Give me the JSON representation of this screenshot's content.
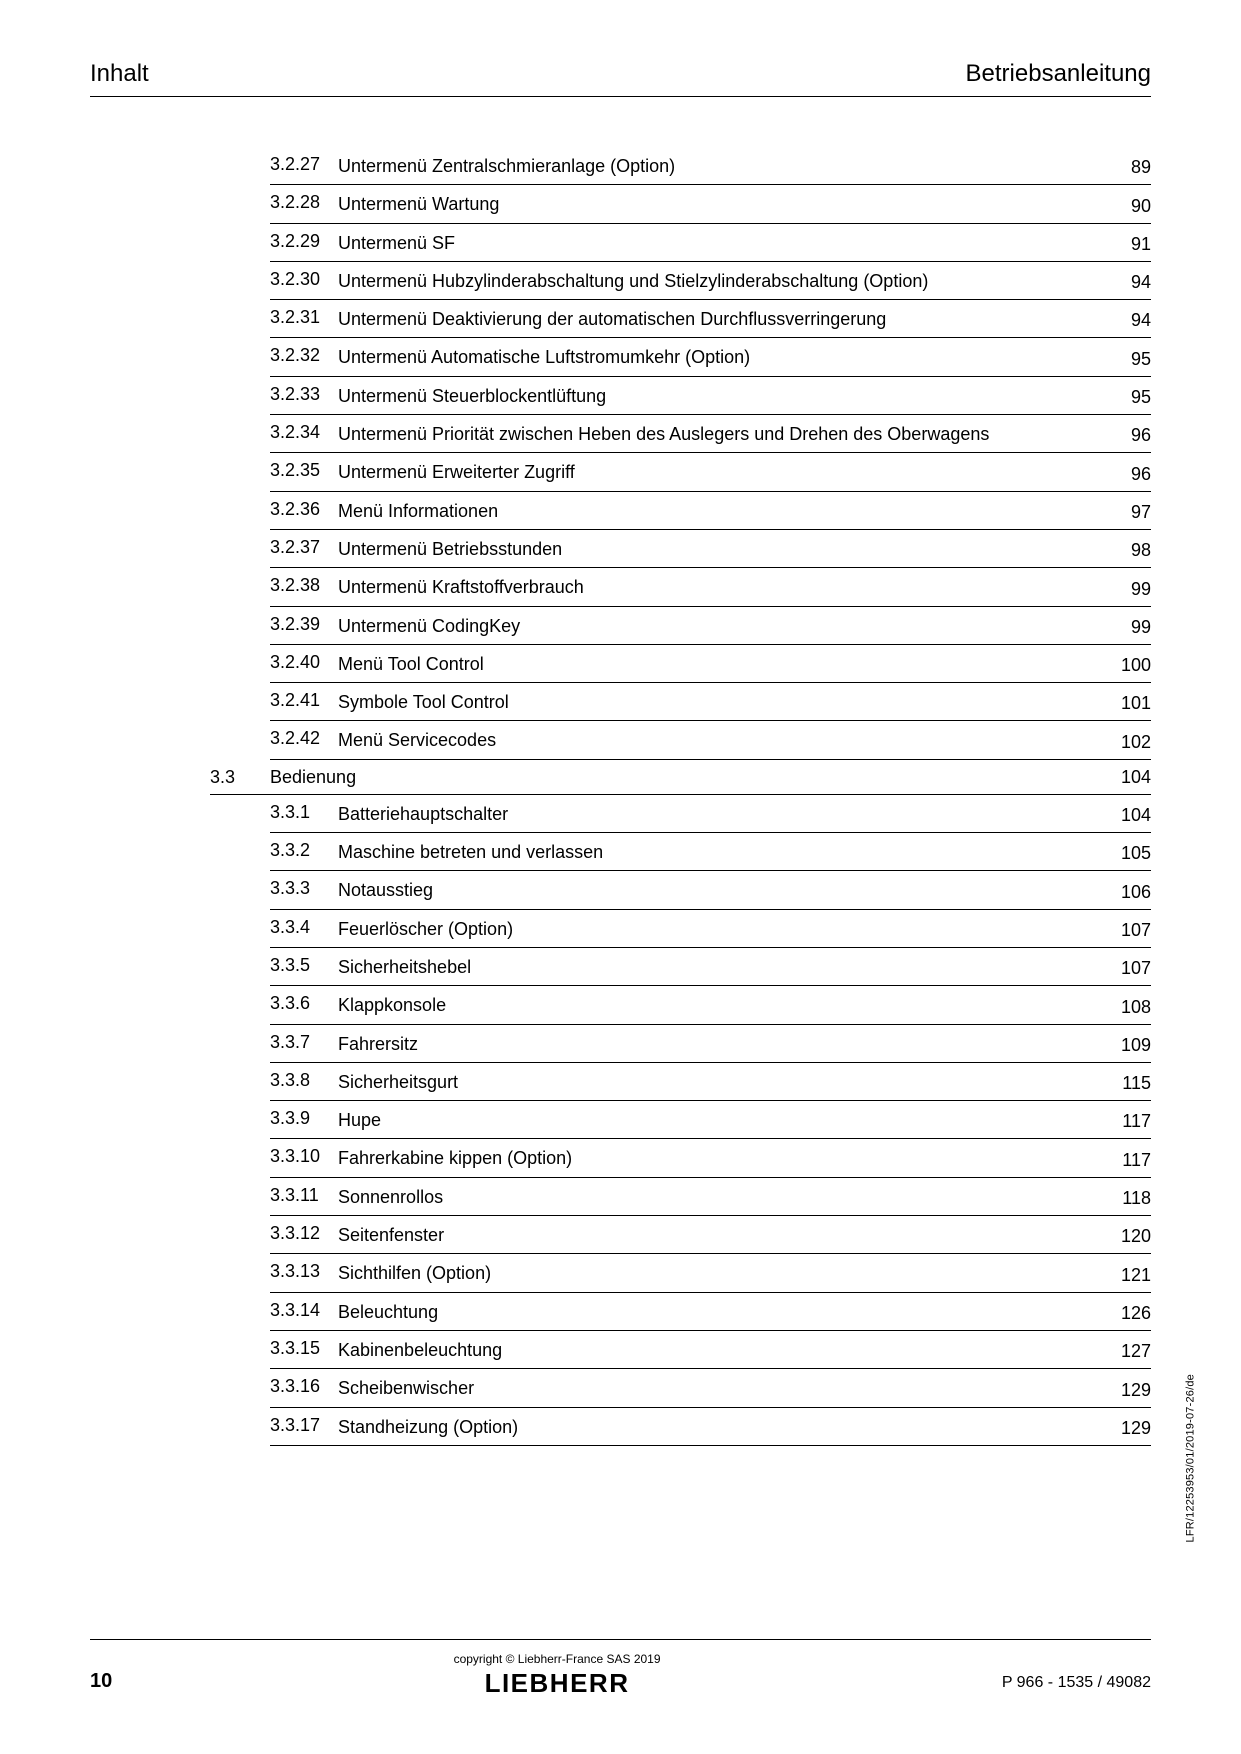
{
  "header": {
    "left": "Inhalt",
    "right": "Betriebsanleitung"
  },
  "toc_upper": [
    {
      "num": "3.2.27",
      "title": "Untermenü Zentralschmieranlage (Option)",
      "page": "89"
    },
    {
      "num": "3.2.28",
      "title": "Untermenü Wartung",
      "page": "90"
    },
    {
      "num": "3.2.29",
      "title": "Untermenü SF",
      "page": "91"
    },
    {
      "num": "3.2.30",
      "title": "Untermenü Hubzylinderabschaltung und Stielzylinderabschaltung (Option)",
      "page": "94"
    },
    {
      "num": "3.2.31",
      "title": "Untermenü Deaktivierung der automatischen Durchflussverringerung",
      "page": "94"
    },
    {
      "num": "3.2.32",
      "title": "Untermenü Automatische Luftstromumkehr (Option)",
      "page": "95"
    },
    {
      "num": "3.2.33",
      "title": "Untermenü Steuerblockentlüftung",
      "page": "95"
    },
    {
      "num": "3.2.34",
      "title": "Untermenü Priorität zwischen Heben des Auslegers und Drehen des Oberwagens",
      "page": "96"
    },
    {
      "num": "3.2.35",
      "title": "Untermenü Erweiterter Zugriff",
      "page": "96"
    },
    {
      "num": "3.2.36",
      "title": "Menü Informationen",
      "page": "97"
    },
    {
      "num": "3.2.37",
      "title": "Untermenü Betriebsstunden",
      "page": "98"
    },
    {
      "num": "3.2.38",
      "title": "Untermenü Kraftstoffverbrauch",
      "page": "99"
    },
    {
      "num": "3.2.39",
      "title": "Untermenü CodingKey",
      "page": "99"
    },
    {
      "num": "3.2.40",
      "title": "Menü Tool Control",
      "page": "100"
    },
    {
      "num": "3.2.41",
      "title": "Symbole Tool Control",
      "page": "101"
    },
    {
      "num": "3.2.42",
      "title": "Menü Servicecodes",
      "page": "102"
    }
  ],
  "section": {
    "num": "3.3",
    "title": "Bedienung",
    "page": "104"
  },
  "toc_lower": [
    {
      "num": "3.3.1",
      "title": "Batteriehauptschalter",
      "page": "104"
    },
    {
      "num": "3.3.2",
      "title": "Maschine betreten und verlassen",
      "page": "105"
    },
    {
      "num": "3.3.3",
      "title": "Notausstieg",
      "page": "106"
    },
    {
      "num": "3.3.4",
      "title": "Feuerlöscher (Option)",
      "page": "107"
    },
    {
      "num": "3.3.5",
      "title": "Sicherheitshebel",
      "page": "107"
    },
    {
      "num": "3.3.6",
      "title": "Klappkonsole",
      "page": "108"
    },
    {
      "num": "3.3.7",
      "title": "Fahrersitz",
      "page": "109"
    },
    {
      "num": "3.3.8",
      "title": "Sicherheitsgurt",
      "page": "115"
    },
    {
      "num": "3.3.9",
      "title": "Hupe",
      "page": "117"
    },
    {
      "num": "3.3.10",
      "title": "Fahrerkabine kippen (Option)",
      "page": "117"
    },
    {
      "num": "3.3.11",
      "title": "Sonnenrollos",
      "page": "118"
    },
    {
      "num": "3.3.12",
      "title": "Seitenfenster",
      "page": "120"
    },
    {
      "num": "3.3.13",
      "title": "Sichthilfen (Option)",
      "page": "121"
    },
    {
      "num": "3.3.14",
      "title": "Beleuchtung",
      "page": "126"
    },
    {
      "num": "3.3.15",
      "title": "Kabinenbeleuchtung",
      "page": "127"
    },
    {
      "num": "3.3.16",
      "title": "Scheibenwischer",
      "page": "129"
    },
    {
      "num": "3.3.17",
      "title": "Standheizung (Option)",
      "page": "129"
    }
  ],
  "side_text": "LFR/12253953/01/2019-07-26/de",
  "footer": {
    "page_num": "10",
    "copyright": "copyright © Liebherr-France SAS 2019",
    "logo": "LIEBHERR",
    "right": "P 966  - 1535 / 49082"
  }
}
